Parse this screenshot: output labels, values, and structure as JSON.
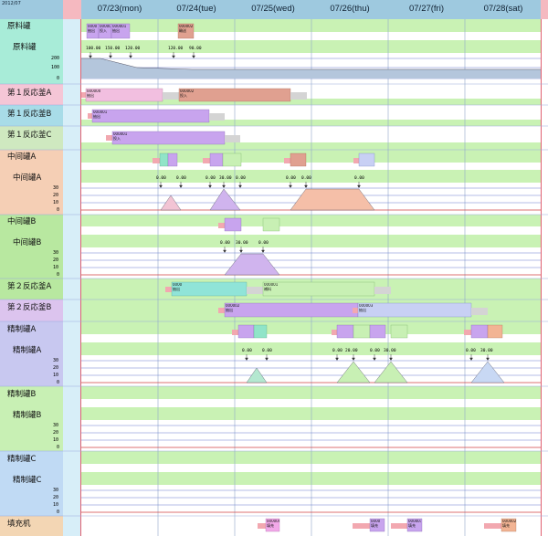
{
  "date_corner": "2012/07",
  "days": [
    "07/23(mon)",
    "07/24(tue)",
    "07/25(wed)",
    "07/26(thu)",
    "07/27(fri)",
    "07/28(sat)"
  ],
  "rows": [
    {
      "label": "原料罐",
      "group": true
    },
    {
      "label": "原料罐",
      "group": false
    },
    {
      "label": "第１反応釜A",
      "group": false
    },
    {
      "label": "第１反応釜B",
      "group": false
    },
    {
      "label": "第１反応釜C",
      "group": false
    },
    {
      "label": "中间罐A",
      "group": true
    },
    {
      "label": "中间罐A",
      "group": false
    },
    {
      "label": "中间罐B",
      "group": true
    },
    {
      "label": "中间罐B",
      "group": false
    },
    {
      "label": "第２反応釜A",
      "group": false
    },
    {
      "label": "第２反応釜B",
      "group": false
    },
    {
      "label": "精制罐A",
      "group": true
    },
    {
      "label": "精制罐A",
      "group": false
    },
    {
      "label": "精制罐B",
      "group": true
    },
    {
      "label": "精制罐B",
      "group": false
    },
    {
      "label": "精制罐C",
      "group": true
    },
    {
      "label": "精制罐C",
      "group": false
    },
    {
      "label": "填充机",
      "group": false
    }
  ],
  "axis_ticks": {
    "raw_tank": [
      "200",
      "100",
      "0"
    ],
    "mid_tank_a": [
      "30",
      "20",
      "10",
      "0"
    ],
    "mid_tank_b": [
      "30",
      "20",
      "10",
      "0"
    ],
    "refine_a": [
      "30",
      "20",
      "10",
      "0"
    ],
    "refine_b": [
      "30",
      "20",
      "10",
      "0"
    ],
    "refine_c": [
      "30",
      "20",
      "10",
      "0"
    ]
  },
  "raw_tank_values": [
    "100.00",
    "150.00",
    "120.00",
    "120.00",
    "90.00"
  ],
  "mid_a_values": [
    "0.00",
    "0.00",
    "0.00",
    "30.00",
    "0.00",
    "0.00",
    "0.00",
    "0.00"
  ],
  "mid_b_values": [
    "0.00",
    "30.00",
    "0.00"
  ],
  "refine_a_values": [
    "0.00",
    "0.00",
    "20.00",
    "0.00",
    "30.00",
    "0.00",
    "30.00",
    "0.00"
  ],
  "block_codes": [
    "0000",
    "000000",
    "000001",
    "000002",
    "000003"
  ],
  "block_words": [
    "抽出",
    "投入",
    "輸送",
    "補料",
    "填充"
  ]
}
